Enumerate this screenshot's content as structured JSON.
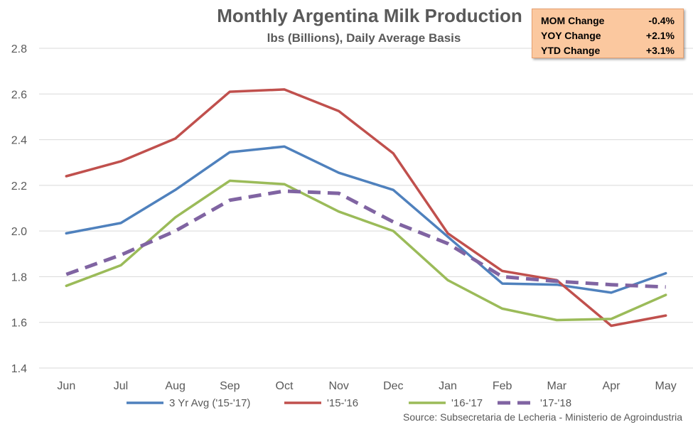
{
  "chart_data": {
    "type": "line",
    "title": "Monthly Argentina Milk Production",
    "subtitle": "lbs (Billions), Daily Average Basis",
    "categories": [
      "Jun",
      "Jul",
      "Aug",
      "Sep",
      "Oct",
      "Nov",
      "Dec",
      "Jan",
      "Feb",
      "Mar",
      "Apr",
      "May"
    ],
    "ylim": [
      1.4,
      2.8
    ],
    "yticks": [
      "1.4",
      "1.6",
      "1.8",
      "2.0",
      "2.2",
      "2.4",
      "2.6",
      "2.8"
    ],
    "grid": true,
    "legend_position": "bottom",
    "series": [
      {
        "name": "3 Yr Avg ('15-'17)",
        "color": "#4f81bd",
        "dashed": false,
        "values": [
          1.99,
          2.035,
          2.18,
          2.345,
          2.37,
          2.255,
          2.18,
          1.975,
          1.77,
          1.765,
          1.73,
          1.815
        ]
      },
      {
        "name": "'15-'16",
        "color": "#c0504d",
        "dashed": false,
        "values": [
          2.24,
          2.305,
          2.405,
          2.61,
          2.62,
          2.525,
          2.34,
          1.99,
          1.825,
          1.785,
          1.585,
          1.63
        ]
      },
      {
        "name": "'16-'17",
        "color": "#9bbb59",
        "dashed": false,
        "values": [
          1.76,
          1.85,
          2.06,
          2.22,
          2.205,
          2.085,
          2.0,
          1.785,
          1.66,
          1.61,
          1.615,
          1.72
        ]
      },
      {
        "name": "'17-'18",
        "color": "#8064a2",
        "dashed": true,
        "values": [
          1.81,
          1.895,
          2.0,
          2.135,
          2.175,
          2.165,
          2.04,
          1.945,
          1.8,
          1.78,
          1.765,
          1.755
        ]
      }
    ],
    "source": "Source: Subsecretaria de Lecheria - Ministerio de Agroindustria"
  },
  "stats": [
    {
      "label": "MOM Change",
      "value": "-0.4%"
    },
    {
      "label": "YOY Change",
      "value": "+2.1%"
    },
    {
      "label": "YTD Change",
      "value": "+3.1%"
    }
  ]
}
